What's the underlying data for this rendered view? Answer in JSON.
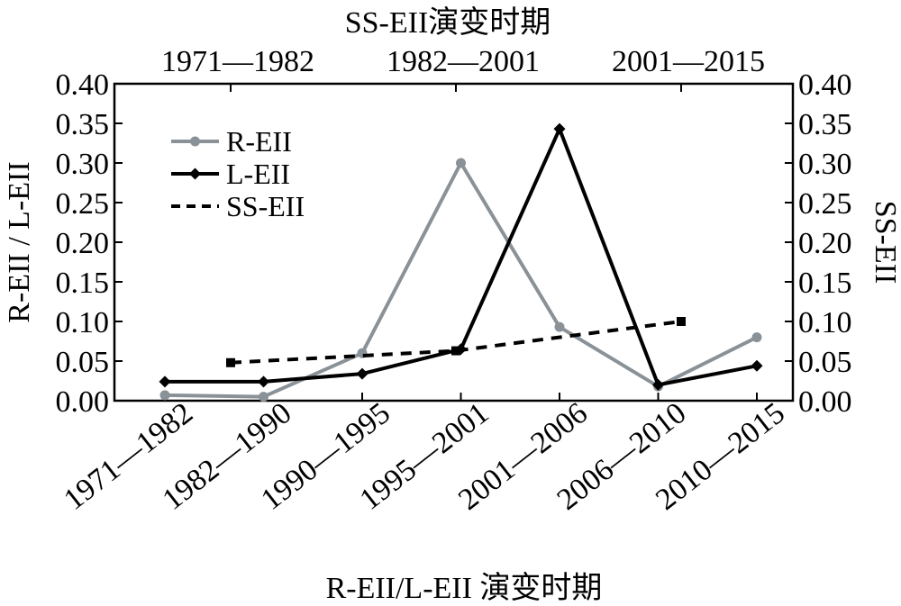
{
  "chart_data": {
    "type": "line",
    "top_axis": {
      "title": "SS-EII演变时期",
      "categories": [
        "1971—1982",
        "1982—2001",
        "2001—2015"
      ]
    },
    "bottom_axis": {
      "title": "R-EII/L-EII 演变时期",
      "categories": [
        "1971—1982",
        "1982—1990",
        "1990—1995",
        "1995—2001",
        "2001—2006",
        "2006—2010",
        "2010—2015"
      ]
    },
    "ylabel_left": "R-EII / L-EII",
    "ylabel_right": "SS-EII",
    "ylim": [
      0,
      0.4
    ],
    "yticks": [
      "0.00",
      "0.05",
      "0.10",
      "0.15",
      "0.20",
      "0.25",
      "0.30",
      "0.35",
      "0.40"
    ],
    "series": [
      {
        "name": "R-EII",
        "axis": "bottom",
        "color": "#8a9298",
        "marker": "circle",
        "style": "solid",
        "values": [
          0.007,
          0.005,
          0.06,
          0.3,
          0.093,
          0.018,
          0.08
        ]
      },
      {
        "name": "L-EII",
        "axis": "bottom",
        "color": "#000000",
        "marker": "diamond",
        "style": "solid",
        "values": [
          0.024,
          0.024,
          0.034,
          0.065,
          0.343,
          0.02,
          0.044
        ]
      },
      {
        "name": "SS-EII",
        "axis": "top",
        "color": "#000000",
        "marker": "square",
        "style": "dashed",
        "values": [
          0.048,
          0.063,
          0.1
        ]
      }
    ],
    "legend": {
      "position": "top-left"
    },
    "grid": false
  }
}
